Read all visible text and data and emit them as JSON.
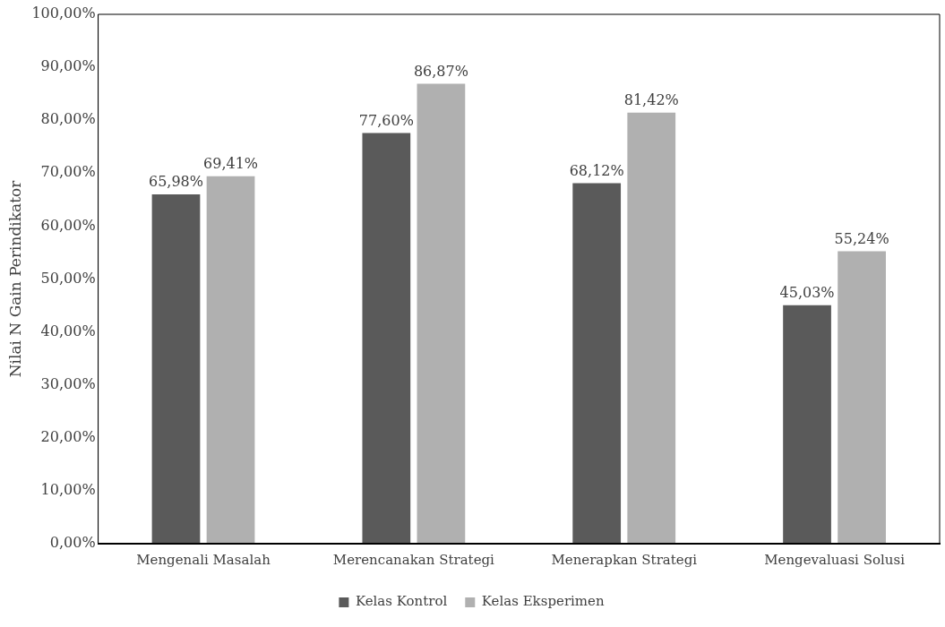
{
  "chart_data": {
    "type": "bar",
    "ylabel": "Nilai N Gain Perindikator",
    "categories": [
      "Mengenali Masalah",
      "Merencanakan Strategi",
      "Menerapkan Strategi",
      "Mengevaluasi Solusi"
    ],
    "series": [
      {
        "name": "Kelas Kontrol",
        "color": "#5a5a5a",
        "values": [
          65.98,
          77.6,
          68.12,
          45.03
        ],
        "value_labels": [
          "65,98%",
          "77,60%",
          "68,12%",
          "45,03%"
        ]
      },
      {
        "name": "Kelas Eksperimen",
        "color": "#b0b0b0",
        "values": [
          69.41,
          86.87,
          81.42,
          55.24
        ],
        "value_labels": [
          "69,41%",
          "86,87%",
          "81,42%",
          "55,24%"
        ]
      }
    ],
    "ylim": [
      0,
      100
    ],
    "yticks": [
      {
        "value": 0,
        "label": "0,00%"
      },
      {
        "value": 10,
        "label": "10,00%"
      },
      {
        "value": 20,
        "label": "20,00%"
      },
      {
        "value": 30,
        "label": "30,00%"
      },
      {
        "value": 40,
        "label": "40,00%"
      },
      {
        "value": 50,
        "label": "50,00%"
      },
      {
        "value": 60,
        "label": "60,00%"
      },
      {
        "value": 70,
        "label": "70,00%"
      },
      {
        "value": 80,
        "label": "80,00%"
      },
      {
        "value": 90,
        "label": "90,00%"
      },
      {
        "value": 100,
        "label": "100,00%"
      }
    ],
    "grid": false,
    "legend": "bottom"
  }
}
